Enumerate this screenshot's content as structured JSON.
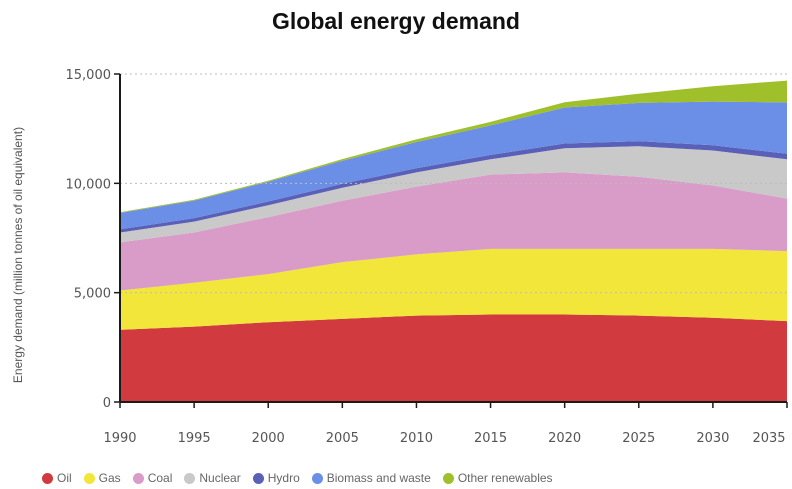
{
  "chart_data": {
    "type": "area",
    "stacked": true,
    "title": "Global energy demand",
    "xlabel": "",
    "ylabel": "Energy demand (million tonnes of oil equivalent)",
    "x": [
      1990,
      1995,
      2000,
      2005,
      2010,
      2015,
      2020,
      2025,
      2030,
      2035
    ],
    "x_tick_labels": [
      "1990",
      "1995",
      "2000",
      "2005",
      "2010",
      "2015",
      "2020",
      "2025",
      "2030",
      "2035"
    ],
    "ylim": [
      0,
      15000
    ],
    "y_ticks": [
      0,
      5000,
      10000,
      15000
    ],
    "y_tick_labels": [
      "0",
      "5,000",
      "10,000",
      "15,000"
    ],
    "grid": "dotted horizontal lines",
    "legend_position": "bottom",
    "series": [
      {
        "name": "Oil",
        "color": "#d13a3f",
        "values": [
          3300,
          3450,
          3650,
          3800,
          3950,
          4000,
          4000,
          3950,
          3850,
          3700
        ]
      },
      {
        "name": "Gas",
        "color": "#f2e63a",
        "values": [
          1800,
          2000,
          2200,
          2600,
          2800,
          3000,
          3000,
          3050,
          3150,
          3200
        ]
      },
      {
        "name": "Coal",
        "color": "#d99bc7",
        "values": [
          2200,
          2300,
          2600,
          2800,
          3100,
          3400,
          3500,
          3300,
          2900,
          2400
        ]
      },
      {
        "name": "Nuclear",
        "color": "#c9c9c9",
        "values": [
          450,
          500,
          550,
          600,
          650,
          700,
          1100,
          1400,
          1600,
          1800
        ]
      },
      {
        "name": "Hydro",
        "color": "#5a5fb8",
        "values": [
          150,
          160,
          170,
          180,
          190,
          200,
          220,
          230,
          240,
          250
        ]
      },
      {
        "name": "Biomass and waste",
        "color": "#6b8fe6",
        "values": [
          750,
          800,
          900,
          1050,
          1200,
          1350,
          1650,
          1750,
          2000,
          2350
        ]
      },
      {
        "name": "Other renewables",
        "color": "#9fc02b",
        "values": [
          30,
          40,
          50,
          80,
          120,
          160,
          240,
          420,
          700,
          1000
        ]
      }
    ]
  }
}
